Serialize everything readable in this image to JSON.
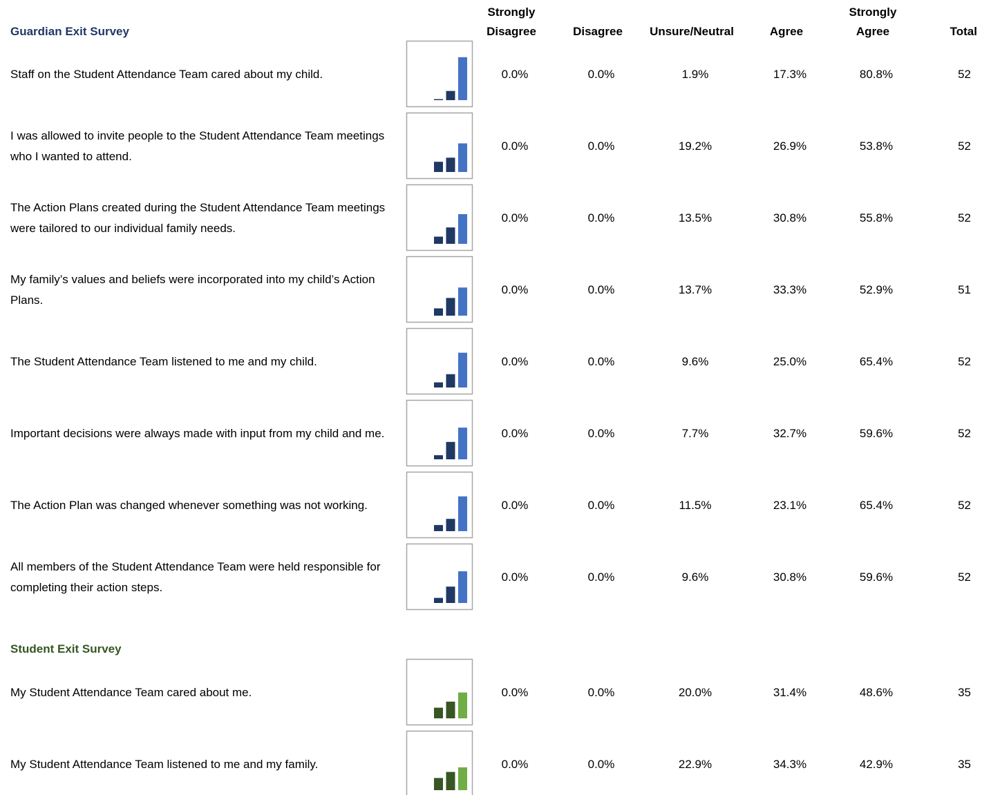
{
  "headers": [
    "Strongly Disagree",
    "Disagree",
    "Unsure/Neutral",
    "Agree",
    "Strongly Agree",
    "Total"
  ],
  "sections": [
    {
      "title": "Guardian Exit Survey",
      "title_color": "#1f3864",
      "colors": [
        "#1f3864",
        "#1f3864",
        "#1f3864",
        "#1f3864",
        "#4472c4"
      ],
      "rows": [
        {
          "question": "Staff on the Student Attendance Team cared about my child.",
          "values": [
            0,
            0,
            1.9,
            17.3,
            80.8
          ],
          "value_labels": [
            "0.0%",
            "0.0%",
            "1.9%",
            "17.3%",
            "80.8%"
          ],
          "total": 52
        },
        {
          "question": "I was allowed to invite people to the Student Attendance Team meetings who I wanted to attend.",
          "values": [
            0,
            0,
            19.2,
            26.9,
            53.8
          ],
          "value_labels": [
            "0.0%",
            "0.0%",
            "19.2%",
            "26.9%",
            "53.8%"
          ],
          "total": 52
        },
        {
          "question": "The Action Plans created during the Student Attendance Team meetings were tailored to our individual family needs.",
          "values": [
            0,
            0,
            13.5,
            30.8,
            55.8
          ],
          "value_labels": [
            "0.0%",
            "0.0%",
            "13.5%",
            "30.8%",
            "55.8%"
          ],
          "total": 52
        },
        {
          "question": "My family’s values and beliefs were incorporated into my child’s Action Plans.",
          "values": [
            0,
            0,
            13.7,
            33.3,
            52.9
          ],
          "value_labels": [
            "0.0%",
            "0.0%",
            "13.7%",
            "33.3%",
            "52.9%"
          ],
          "total": 51
        },
        {
          "question": "The Student Attendance Team listened to me and my child.",
          "values": [
            0,
            0,
            9.6,
            25.0,
            65.4
          ],
          "value_labels": [
            "0.0%",
            "0.0%",
            "9.6%",
            "25.0%",
            "65.4%"
          ],
          "total": 52
        },
        {
          "question": "Important decisions were always made with input from my child and me.",
          "values": [
            0,
            0,
            7.7,
            32.7,
            59.6
          ],
          "value_labels": [
            "0.0%",
            "0.0%",
            "7.7%",
            "32.7%",
            "59.6%"
          ],
          "total": 52
        },
        {
          "question": "The Action Plan was changed whenever something was not working.",
          "values": [
            0,
            0,
            11.5,
            23.1,
            65.4
          ],
          "value_labels": [
            "0.0%",
            "0.0%",
            "11.5%",
            "23.1%",
            "65.4%"
          ],
          "total": 52
        },
        {
          "question": "All members of the Student Attendance Team were held responsible for completing their action steps.",
          "values": [
            0,
            0,
            9.6,
            30.8,
            59.6
          ],
          "value_labels": [
            "0.0%",
            "0.0%",
            "9.6%",
            "30.8%",
            "59.6%"
          ],
          "total": 52
        }
      ]
    },
    {
      "title": "Student Exit Survey",
      "title_color": "#375623",
      "colors": [
        "#375623",
        "#375623",
        "#375623",
        "#375623",
        "#70ad47"
      ],
      "rows": [
        {
          "question": "My Student Attendance Team cared about me.",
          "values": [
            0,
            0,
            20.0,
            31.4,
            48.6
          ],
          "value_labels": [
            "0.0%",
            "0.0%",
            "20.0%",
            "31.4%",
            "48.6%"
          ],
          "total": 35
        },
        {
          "question": "My Student Attendance Team listened to me and my family.",
          "values": [
            0,
            0,
            22.9,
            34.3,
            42.9
          ],
          "value_labels": [
            "0.0%",
            "0.0%",
            "22.9%",
            "34.3%",
            "42.9%"
          ],
          "total": 35
        }
      ]
    }
  ]
}
